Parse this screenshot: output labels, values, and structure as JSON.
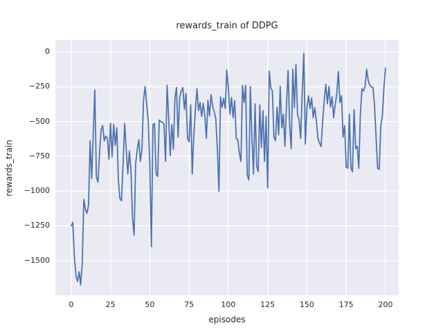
{
  "figure": {
    "title": "rewards_train of DDPG",
    "background_color": "#ffffff"
  },
  "chart_data": {
    "type": "line",
    "title": "rewards_train of DDPG",
    "xlabel": "episodes",
    "ylabel": "rewards_train",
    "plot_bg_color": "#eaeaf2",
    "grid_color": "#ffffff",
    "text_color": "#262626",
    "line_color": "#4c72b0",
    "grid": true,
    "legend": false,
    "xlim": [
      -10.1,
      208.4
    ],
    "ylim": [
      -1750,
      85
    ],
    "x_ticks": [
      0,
      25,
      50,
      75,
      100,
      125,
      150,
      175,
      200
    ],
    "x_tick_labels": [
      "0",
      "25",
      "50",
      "75",
      "100",
      "125",
      "150",
      "175",
      "200"
    ],
    "y_ticks": [
      0,
      -250,
      -500,
      -750,
      -1000,
      -1250,
      -1500
    ],
    "y_tick_labels": [
      "0",
      "−250",
      "−500",
      "−750",
      "−1000",
      "−1250",
      "−1500"
    ],
    "series": [
      {
        "name": "rewards_train",
        "x_start": 0,
        "x_step": 1,
        "values": [
          -1250,
          -1225,
          -1470,
          -1610,
          -1650,
          -1580,
          -1675,
          -1520,
          -1060,
          -1130,
          -1160,
          -1100,
          -640,
          -910,
          -590,
          -273,
          -900,
          -936,
          -730,
          -560,
          -530,
          -640,
          -605,
          -620,
          -770,
          -513,
          -755,
          -520,
          -672,
          -545,
          -920,
          -1055,
          -1070,
          -800,
          -515,
          -700,
          -877,
          -712,
          -850,
          -1200,
          -1317,
          -800,
          -704,
          -630,
          -787,
          -700,
          -350,
          -249,
          -372,
          -497,
          -800,
          -1400,
          -522,
          -514,
          -878,
          -895,
          -489,
          -500,
          -505,
          -520,
          -787,
          -240,
          -472,
          -745,
          -522,
          -700,
          -330,
          -256,
          -612,
          -330,
          -281,
          -256,
          -414,
          -298,
          -621,
          -646,
          -380,
          -878,
          -600,
          -420,
          -265,
          -422,
          -363,
          -464,
          -370,
          -460,
          -621,
          -348,
          -460,
          -307,
          -390,
          -430,
          -480,
          -700,
          -1002,
          -323,
          -398,
          -332,
          -406,
          -130,
          -260,
          -447,
          -327,
          -472,
          -350,
          -621,
          -630,
          -729,
          -787,
          -240,
          -364,
          -240,
          -886,
          -920,
          -249,
          -621,
          -878,
          -373,
          -820,
          -861,
          -381,
          -687,
          -422,
          -787,
          -464,
          -978,
          -138,
          -260,
          -281,
          -612,
          -637,
          -397,
          -596,
          -248,
          -546,
          -447,
          -678,
          -381,
          -133,
          -530,
          -695,
          -124,
          -400,
          -90,
          -447,
          -489,
          -622,
          -300,
          -10,
          -663,
          -400,
          -315,
          -406,
          -330,
          -472,
          -400,
          -497,
          -621,
          -655,
          -680,
          -500,
          -350,
          -232,
          -373,
          -248,
          -397,
          -323,
          -472,
          -380,
          -300,
          -141,
          -364,
          -315,
          -612,
          -530,
          -829,
          -837,
          -447,
          -837,
          -862,
          -414,
          -695,
          -678,
          -837,
          -447,
          -265,
          -281,
          -248,
          -124,
          -206,
          -240,
          -248,
          -256,
          -381,
          -612,
          -837,
          -845,
          -530,
          -463,
          -256,
          -116
        ]
      }
    ]
  }
}
